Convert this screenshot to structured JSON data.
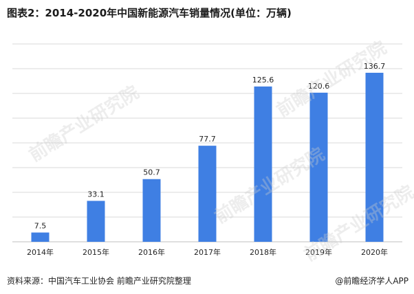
{
  "title": "图表2：2014-2020年中国新能源汽车销量情况(单位：万辆)",
  "source": "资料来源：中国汽车工业协会 前瞻产业研究院整理",
  "credit": "@前瞻经济学人APP",
  "watermark": "前瞻产业研究院",
  "colors": {
    "bar": "#3f7fe3",
    "grid": "#d9d9d9",
    "axis": "#bfbfbf"
  },
  "chart_data": {
    "type": "bar",
    "categories": [
      "2014年",
      "2015年",
      "2016年",
      "2017年",
      "2018年",
      "2019年",
      "2020年"
    ],
    "values": [
      7.5,
      33.1,
      50.7,
      77.7,
      125.6,
      120.6,
      136.7
    ],
    "value_labels": [
      "7.5",
      "33.1",
      "50.7",
      "77.7",
      "125.6",
      "120.6",
      "136.7"
    ],
    "ylim": [
      0,
      160
    ],
    "grid": true,
    "legend": "none"
  }
}
